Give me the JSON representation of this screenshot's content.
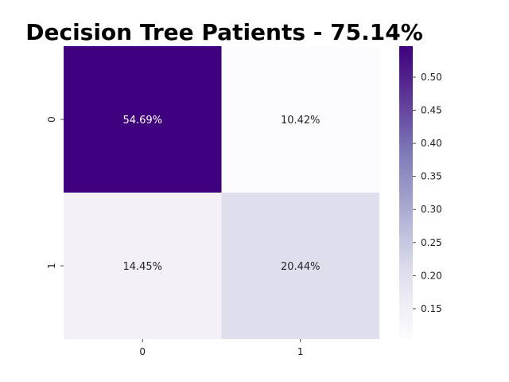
{
  "chart_data": {
    "type": "heatmap",
    "title": "Decision Tree Patients - 75.14%",
    "x_categories": [
      "0",
      "1"
    ],
    "y_categories": [
      "0",
      "1"
    ],
    "values": [
      [
        0.5469,
        0.1042
      ],
      [
        0.1445,
        0.2044
      ]
    ],
    "cell_labels": [
      [
        "54.69%",
        "10.42%"
      ],
      [
        "14.45%",
        "20.44%"
      ]
    ],
    "colormap": "Purples",
    "colorbar": {
      "range": [
        0.1042,
        0.5469
      ],
      "ticks": [
        0.15,
        0.2,
        0.25,
        0.3,
        0.35,
        0.4,
        0.45,
        0.5
      ],
      "tick_labels": [
        "0.15",
        "0.20",
        "0.25",
        "0.30",
        "0.35",
        "0.40",
        "0.45",
        "0.50"
      ]
    },
    "colors": {
      "low": "#fcfbfd",
      "mid": "#dadaeb",
      "high": "#3f007d",
      "dark_text": "#262626",
      "light_text": "#ffffff"
    }
  }
}
